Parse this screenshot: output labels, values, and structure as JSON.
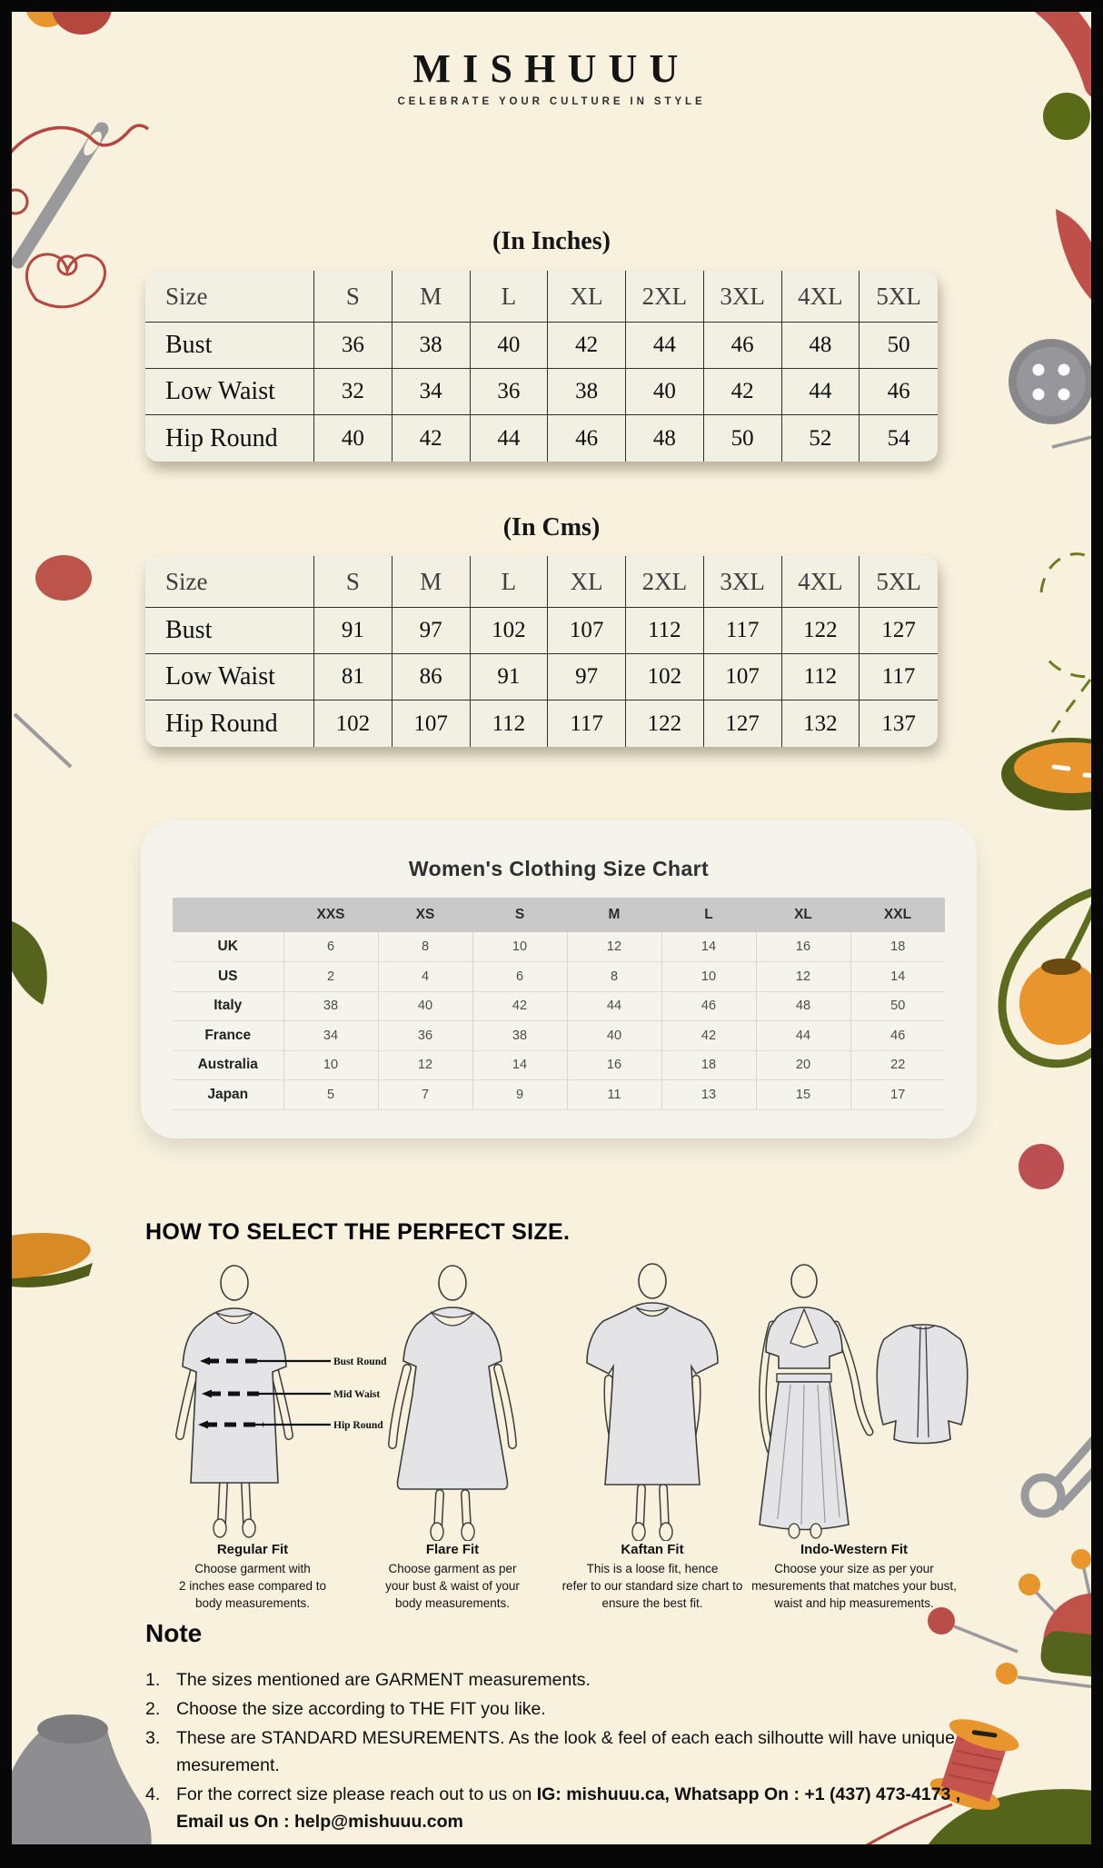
{
  "page": {
    "bg": "#f7f1de",
    "frame_color": "#070707"
  },
  "colors": {
    "terracotta": "#bf4f49",
    "olive": "#55631c",
    "orange": "#e8952e",
    "gray": "#8e8e90",
    "table_bg": "#f1f0e3",
    "card_bg": "#f4f3ec",
    "header_band": "#c9c9c9"
  },
  "brand": {
    "logo": "MISHUUU",
    "tagline": "CELEBRATE YOUR CULTURE IN STYLE"
  },
  "inches_table": {
    "title": "(In Inches)",
    "header": [
      "Size",
      "S",
      "M",
      "L",
      "XL",
      "2XL",
      "3XL",
      "4XL",
      "5XL"
    ],
    "rows": [
      [
        "Bust",
        "36",
        "38",
        "40",
        "42",
        "44",
        "46",
        "48",
        "50"
      ],
      [
        "Low Waist",
        "32",
        "34",
        "36",
        "38",
        "40",
        "42",
        "44",
        "46"
      ],
      [
        "Hip Round",
        "40",
        "42",
        "44",
        "46",
        "48",
        "50",
        "52",
        "54"
      ]
    ]
  },
  "cms_table": {
    "title": "(In Cms)",
    "header": [
      "Size",
      "S",
      "M",
      "L",
      "XL",
      "2XL",
      "3XL",
      "4XL",
      "5XL"
    ],
    "rows": [
      [
        "Bust",
        "91",
        "97",
        "102",
        "107",
        "112",
        "117",
        "122",
        "127"
      ],
      [
        "Low Waist",
        "81",
        "86",
        "91",
        "97",
        "102",
        "107",
        "112",
        "117"
      ],
      [
        "Hip Round",
        "102",
        "107",
        "112",
        "117",
        "122",
        "127",
        "132",
        "137"
      ]
    ]
  },
  "intl_chart": {
    "title": "Women's Clothing Size Chart",
    "header": [
      "",
      "XXS",
      "XS",
      "S",
      "M",
      "L",
      "XL",
      "XXL"
    ],
    "rows": [
      [
        "UK",
        "6",
        "8",
        "10",
        "12",
        "14",
        "16",
        "18"
      ],
      [
        "US",
        "2",
        "4",
        "6",
        "8",
        "10",
        "12",
        "14"
      ],
      [
        "Italy",
        "38",
        "40",
        "42",
        "44",
        "46",
        "48",
        "50"
      ],
      [
        "France",
        "34",
        "36",
        "38",
        "40",
        "42",
        "44",
        "46"
      ],
      [
        "Australia",
        "10",
        "12",
        "14",
        "16",
        "18",
        "20",
        "22"
      ],
      [
        "Japan",
        "5",
        "7",
        "9",
        "11",
        "13",
        "15",
        "17"
      ]
    ]
  },
  "how_to": {
    "heading": "HOW TO SELECT THE PERFECT SIZE.",
    "measure_labels": [
      "Bust Round",
      "Mid Waist",
      "Hip Round"
    ],
    "fits": [
      {
        "title": "Regular Fit",
        "lines": [
          "Choose garment with",
          "2 inches ease compared to",
          "body measurements."
        ]
      },
      {
        "title": "Flare Fit",
        "lines": [
          "Choose garment as per",
          "your bust & waist of your",
          "body measurements."
        ]
      },
      {
        "title": "Kaftan Fit",
        "lines": [
          "This is a loose fit, hence",
          "refer to our standard size chart to",
          "ensure the best fit."
        ]
      },
      {
        "title": "Indo-Western Fit",
        "lines": [
          "Choose your size as per your",
          "mesurements that matches your bust,",
          "waist and hip measurements."
        ]
      }
    ]
  },
  "note": {
    "title": "Note",
    "items": [
      {
        "num": "1.",
        "parts": [
          {
            "text": "The sizes mentioned are GARMENT measurements.",
            "bold": false
          }
        ]
      },
      {
        "num": "2.",
        "parts": [
          {
            "text": "Choose the size according to THE FIT you like.",
            "bold": false
          }
        ]
      },
      {
        "num": "3.",
        "parts": [
          {
            "text": "These are STANDARD MESUREMENTS. As the look & feel of each each silhoutte will have unique mesurement.",
            "bold": false
          }
        ]
      },
      {
        "num": "4.",
        "parts": [
          {
            "text": "For the correct size please reach out to us on ",
            "bold": false
          },
          {
            "text": "IG: mishuuu.ca, Whatsapp On : +1 (437) 473-4173 , Email us On : help@mishuuu.com",
            "bold": true
          }
        ]
      }
    ]
  }
}
